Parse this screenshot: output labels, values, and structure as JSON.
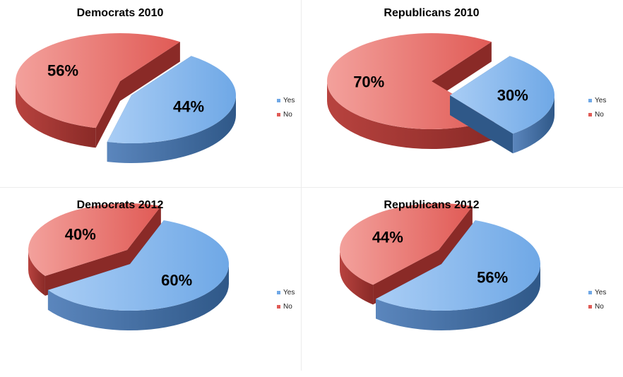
{
  "colors": {
    "yes_top": "#6fa8e6",
    "yes_top_light": "#a9cdf5",
    "yes_side": "#2f5888",
    "yes_side_light": "#5b86bd",
    "no_top": "#e05a55",
    "no_top_light": "#f3a19c",
    "no_side": "#8a2a27",
    "no_side_light": "#b8433f"
  },
  "legend": {
    "yes": "Yes",
    "no": "No"
  },
  "chart_data": [
    {
      "type": "pie",
      "title": "Democrats 2010",
      "categories": [
        "Yes",
        "No"
      ],
      "values": [
        44,
        56
      ],
      "labels": [
        "44%",
        "56%"
      ],
      "legend": "right"
    },
    {
      "type": "pie",
      "title": "Republicans 2010",
      "categories": [
        "Yes",
        "No"
      ],
      "values": [
        30,
        70
      ],
      "labels": [
        "30%",
        "70%"
      ],
      "legend": "right"
    },
    {
      "type": "pie",
      "title": "Democrats 2012",
      "categories": [
        "Yes",
        "No"
      ],
      "values": [
        60,
        40
      ],
      "labels": [
        "60%",
        "40%"
      ],
      "legend": "right"
    },
    {
      "type": "pie",
      "title": "Republicans 2012",
      "categories": [
        "Yes",
        "No"
      ],
      "values": [
        56,
        44
      ],
      "labels": [
        "56%",
        "44%"
      ],
      "legend": "right"
    }
  ]
}
